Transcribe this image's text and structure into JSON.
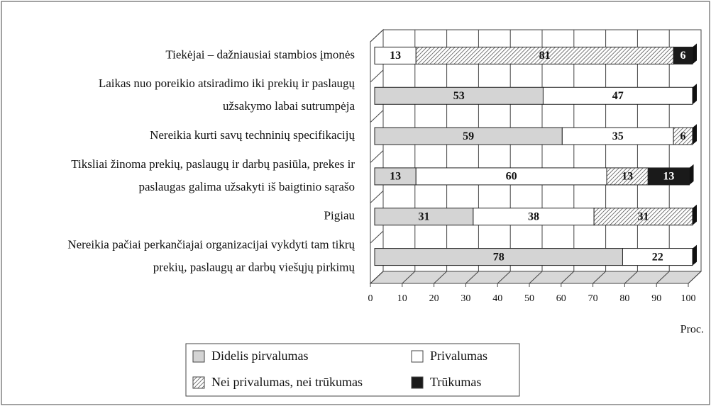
{
  "chart_data": {
    "type": "stacked-bar-horizontal",
    "categories": [
      [
        "Tiekėjai – dažniausiai stambios įmonės"
      ],
      [
        "Laikas nuo poreikio atsiradimo iki prekių ir paslaugų",
        "užsakymo labai sutrumpėja"
      ],
      [
        "Nereikia kurti savų techninių specifikacijų"
      ],
      [
        "Tiksliai žinoma prekių, paslaugų ir darbų pasiūla, prekes ir",
        "paslaugas galima užsakyti iš baigtinio sąrašo"
      ],
      [
        "Pigiau"
      ],
      [
        "Nereikia pačiai perkančiajai organizacijai vykdyti tam tikrų",
        "prekių, paslaugų ar darbų viešųjų pirkimų"
      ]
    ],
    "series": [
      {
        "name": "Didelis pirvalumas",
        "color": "#d4d4d4",
        "values": [
          null,
          53,
          59,
          13,
          31,
          78
        ]
      },
      {
        "name": "Privalumas",
        "color": "#ffffff",
        "values": [
          13,
          47,
          35,
          60,
          38,
          22
        ]
      },
      {
        "name": "Nei privalumas, nei trūkumas",
        "color": "#ffffff",
        "hatch": true,
        "values": [
          81,
          null,
          6,
          13,
          31,
          null
        ]
      },
      {
        "name": "Trūkumas",
        "color": "#1a1a1a",
        "values": [
          6,
          null,
          null,
          13,
          null,
          null
        ]
      }
    ],
    "xlim": [
      0,
      100
    ],
    "xticks": [
      0,
      10,
      20,
      30,
      40,
      50,
      60,
      70,
      80,
      90,
      100
    ],
    "xlabel": "Proc.",
    "grid": true,
    "legend": "bottom"
  }
}
